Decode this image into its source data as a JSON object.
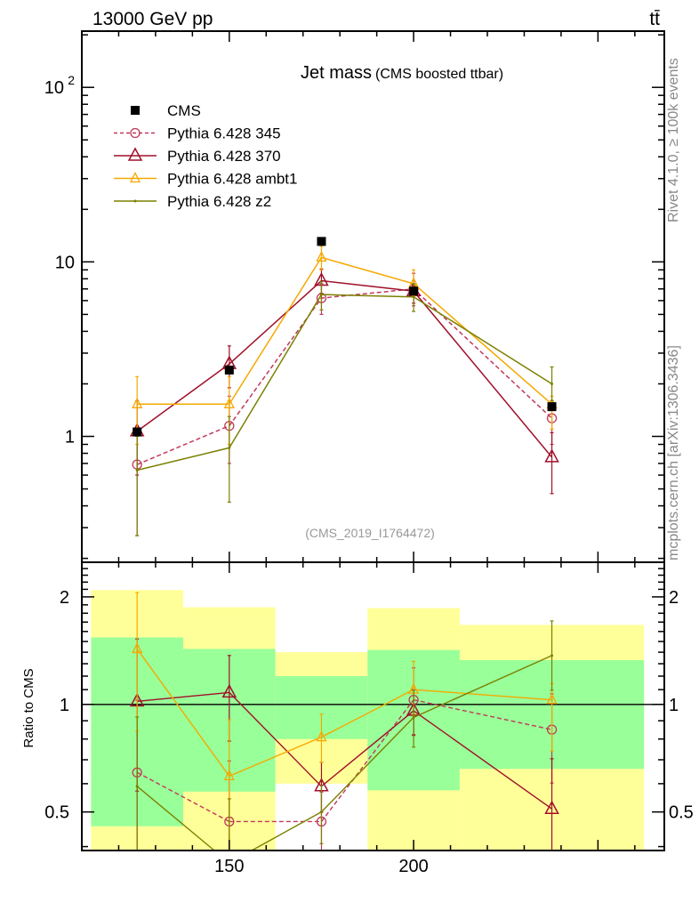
{
  "header": {
    "energy_label": "13000 GeV pp",
    "process_label": "tt̄"
  },
  "side_labels": {
    "rivet": "Rivet 4.1.0, ≥ 100k events",
    "mcplots": "mcplots.cern.ch [arXiv:1306.3436]"
  },
  "chart_data": [
    {
      "type": "line",
      "title": "Jet mass",
      "subtitle": "(CMS boosted ttbar)",
      "analysis_tag": "(CMS_2019_I1764472)",
      "xlabel": "",
      "ylabel": "",
      "yscale": "log",
      "xlim": [
        110,
        268
      ],
      "ylim": [
        0.19,
        210
      ],
      "ytick_labels": [
        {
          "value": 100,
          "label": "10",
          "exp": "2"
        },
        {
          "value": 10,
          "label": "10"
        },
        {
          "value": 1,
          "label": "1"
        }
      ],
      "legend_position": "top-left",
      "x": [
        125,
        150,
        175,
        200,
        237.5
      ],
      "bin_edges": [
        112.5,
        137.5,
        162.5,
        187.5,
        212.5,
        262.5
      ],
      "series": [
        {
          "name": "CMS",
          "color": "#000000",
          "marker": "square",
          "line": "none",
          "values": [
            1.06,
            2.4,
            13.1,
            6.8,
            1.48
          ]
        },
        {
          "name": "Pythia 6.428 345",
          "color": "#c0395a",
          "marker": "circle",
          "line": "dashed",
          "values": [
            0.69,
            1.15,
            6.2,
            7.0,
            1.27
          ],
          "err_low": [
            0.27,
            0.7,
            5.0,
            5.6,
            0.9
          ],
          "err_high": [
            1.1,
            1.7,
            7.5,
            8.6,
            1.6
          ]
        },
        {
          "name": "Pythia 6.428 370",
          "color": "#a0102a",
          "marker": "triangle",
          "line": "solid",
          "values": [
            1.07,
            2.6,
            7.8,
            6.8,
            0.76
          ],
          "err_low": [
            0.6,
            1.9,
            6.6,
            5.8,
            0.47
          ],
          "err_high": [
            1.6,
            3.3,
            9.1,
            7.8,
            1.05
          ]
        },
        {
          "name": "Pythia 6.428 ambt1",
          "color": "#f5a800",
          "marker": "triangle-small",
          "line": "solid",
          "values": [
            1.53,
            1.53,
            10.6,
            7.5,
            1.53
          ],
          "err_low": [
            0.9,
            0.9,
            9.0,
            6.4,
            1.1
          ],
          "err_high": [
            2.2,
            2.2,
            12.3,
            9.0,
            1.7
          ]
        },
        {
          "name": "Pythia 6.428 z2",
          "color": "#7c8000",
          "marker": "dot",
          "line": "solid",
          "values": [
            0.64,
            0.86,
            6.5,
            6.3,
            2.0
          ],
          "err_low": [
            0.27,
            0.42,
            5.3,
            5.2,
            1.6
          ],
          "err_high": [
            1.0,
            1.3,
            7.7,
            7.5,
            2.5
          ]
        }
      ]
    },
    {
      "type": "line",
      "title": "",
      "xlabel": "",
      "ylabel": "Ratio to CMS",
      "yscale": "log",
      "xlim": [
        110,
        268
      ],
      "ylim": [
        0.39,
        2.5
      ],
      "xtick_labels": [
        {
          "value": 150,
          "label": "150"
        },
        {
          "value": 200,
          "label": "200"
        }
      ],
      "ytick_labels": [
        {
          "value": 2,
          "label": "2"
        },
        {
          "value": 1,
          "label": "1"
        },
        {
          "value": 0.5,
          "label": "0.5"
        }
      ],
      "x": [
        125,
        150,
        175,
        200,
        237.5
      ],
      "bands": {
        "one_sigma_color": "#99ff99",
        "two_sigma_color": "#ffff99",
        "one_sigma_low": [
          0.456,
          0.57,
          0.8,
          0.575,
          0.66
        ],
        "one_sigma_high": [
          1.54,
          1.43,
          1.2,
          1.42,
          1.33
        ],
        "two_sigma_low": [
          0.3,
          0.3,
          0.6,
          0.3,
          0.3
        ],
        "two_sigma_high": [
          2.09,
          1.87,
          1.4,
          1.86,
          1.67
        ]
      },
      "series": [
        {
          "name": "Pythia 6.428 345",
          "values": [
            0.645,
            0.47,
            0.47,
            1.03,
            0.85
          ]
        },
        {
          "name": "Pythia 6.428 370",
          "values": [
            1.02,
            1.08,
            0.59,
            0.96,
            0.51
          ]
        },
        {
          "name": "Pythia 6.428 ambt1",
          "values": [
            1.43,
            0.63,
            0.81,
            1.1,
            1.03
          ]
        },
        {
          "name": "Pythia 6.428 z2",
          "values": [
            0.59,
            0.36,
            0.5,
            0.92,
            1.37
          ]
        }
      ]
    }
  ]
}
